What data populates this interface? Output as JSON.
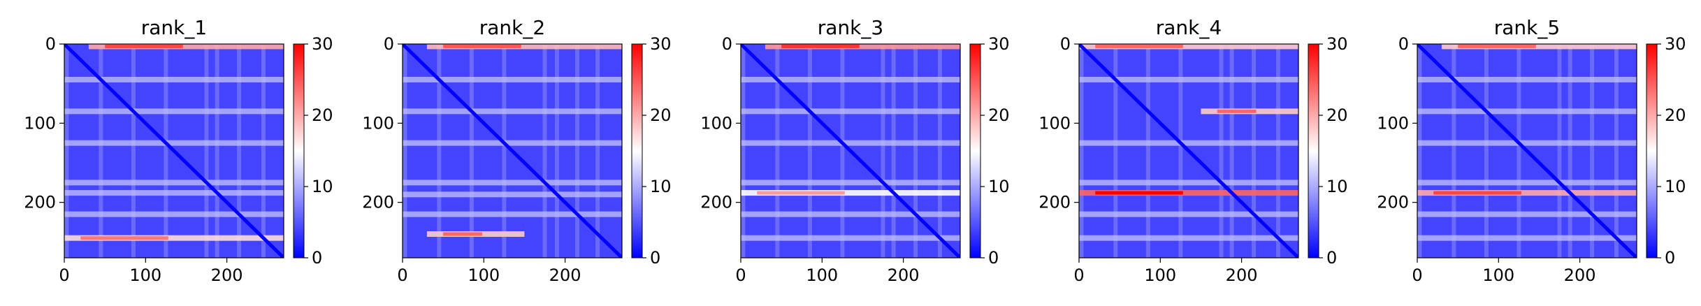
{
  "chart_data": [
    {
      "type": "heatmap",
      "title": "rank_1",
      "xlim": [
        0,
        270
      ],
      "ylim": [
        270,
        0
      ],
      "xticks": [
        0,
        100,
        200
      ],
      "yticks": [
        0,
        100,
        200
      ],
      "colorbar": {
        "min": 0,
        "max": 30,
        "ticks": [
          0,
          10,
          20,
          30
        ],
        "colormap": "bwr"
      },
      "high_rows": [
        {
          "y": 3,
          "level": 20,
          "x_from": 30,
          "x_to": 270
        },
        {
          "y": 245,
          "level": 17,
          "x_from": 0,
          "x_to": 270
        }
      ],
      "light_rows": [
        45,
        85,
        125,
        175,
        188,
        215
      ]
    },
    {
      "type": "heatmap",
      "title": "rank_2",
      "xlim": [
        0,
        270
      ],
      "ylim": [
        270,
        0
      ],
      "xticks": [
        0,
        100,
        200
      ],
      "yticks": [
        0,
        100,
        200
      ],
      "colorbar": {
        "min": 0,
        "max": 30,
        "ticks": [
          0,
          10,
          20,
          30
        ],
        "colormap": "bwr"
      },
      "high_rows": [
        {
          "y": 3,
          "level": 19,
          "x_from": 30,
          "x_to": 270
        },
        {
          "y": 240,
          "level": 18,
          "x_from": 30,
          "x_to": 150
        }
      ],
      "light_rows": [
        45,
        85,
        125,
        175,
        190,
        215
      ]
    },
    {
      "type": "heatmap",
      "title": "rank_3",
      "xlim": [
        0,
        270
      ],
      "ylim": [
        270,
        0
      ],
      "xticks": [
        0,
        100,
        200
      ],
      "yticks": [
        0,
        100,
        200
      ],
      "colorbar": {
        "min": 0,
        "max": 30,
        "ticks": [
          0,
          10,
          20,
          30
        ],
        "colormap": "bwr"
      },
      "high_rows": [
        {
          "y": 3,
          "level": 21,
          "x_from": 30,
          "x_to": 270
        },
        {
          "y": 188,
          "level": 15,
          "x_from": 0,
          "x_to": 270
        }
      ],
      "light_rows": [
        45,
        85,
        125,
        175,
        215,
        245
      ]
    },
    {
      "type": "heatmap",
      "title": "rank_4",
      "xlim": [
        0,
        270
      ],
      "ylim": [
        270,
        0
      ],
      "xticks": [
        0,
        100,
        200
      ],
      "yticks": [
        0,
        100,
        200
      ],
      "colorbar": {
        "min": 0,
        "max": 30,
        "ticks": [
          0,
          10,
          20,
          30
        ],
        "colormap": "bwr"
      },
      "high_rows": [
        {
          "y": 3,
          "level": 18,
          "x_from": 0,
          "x_to": 270
        },
        {
          "y": 85,
          "level": 18,
          "x_from": 150,
          "x_to": 270
        },
        {
          "y": 188,
          "level": 24,
          "x_from": 0,
          "x_to": 270
        }
      ],
      "light_rows": [
        45,
        125,
        175,
        215,
        245
      ]
    },
    {
      "type": "heatmap",
      "title": "rank_5",
      "xlim": [
        0,
        270
      ],
      "ylim": [
        270,
        0
      ],
      "xticks": [
        0,
        100,
        200
      ],
      "yticks": [
        0,
        100,
        200
      ],
      "colorbar": {
        "min": 0,
        "max": 30,
        "ticks": [
          0,
          10,
          20,
          30
        ],
        "colormap": "bwr"
      },
      "high_rows": [
        {
          "y": 3,
          "level": 18,
          "x_from": 30,
          "x_to": 270
        },
        {
          "y": 188,
          "level": 20,
          "x_from": 0,
          "x_to": 270
        }
      ],
      "light_rows": [
        45,
        85,
        125,
        175,
        215,
        245
      ]
    }
  ]
}
